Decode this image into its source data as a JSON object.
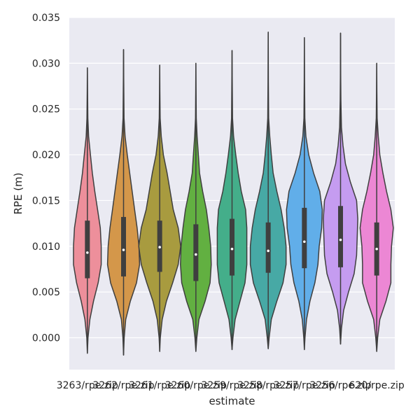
{
  "chart_data": {
    "type": "violin",
    "xlabel": "estimate",
    "ylabel": "RPE (m)",
    "ylim": [
      -0.0035,
      0.035
    ],
    "yticks": [
      0.0,
      0.005,
      0.01,
      0.015,
      0.02,
      0.025,
      0.03,
      0.035
    ],
    "ytick_labels": [
      "0.000",
      "0.005",
      "0.010",
      "0.015",
      "0.020",
      "0.025",
      "0.030",
      "0.035"
    ],
    "grid": true,
    "categories": [
      "3263/rpe.zip",
      "3262/rpe.zip",
      "3261/rpe.zip",
      "3260/rpe.zip",
      "3259/rpe.zip",
      "3258/rpe.zip",
      "3257/rpe.zip",
      "3256/rpe.zip",
      "620/rpe.zip"
    ],
    "colors": [
      "#ed8f9b",
      "#d4974a",
      "#a89b3f",
      "#62b041",
      "#44ae8a",
      "#47a9a5",
      "#61aee9",
      "#c59cf0",
      "#ec87d4"
    ],
    "series": [
      {
        "min": -0.0017,
        "q1": 0.0065,
        "median": 0.0093,
        "q3": 0.0128,
        "max": 0.0295,
        "profile": [
          [
            -0.0017,
            0.0
          ],
          [
            0.0,
            0.02
          ],
          [
            0.002,
            0.08
          ],
          [
            0.004,
            0.2
          ],
          [
            0.006,
            0.35
          ],
          [
            0.008,
            0.45
          ],
          [
            0.01,
            0.45
          ],
          [
            0.012,
            0.42
          ],
          [
            0.014,
            0.33
          ],
          [
            0.016,
            0.24
          ],
          [
            0.018,
            0.16
          ],
          [
            0.02,
            0.1
          ],
          [
            0.022,
            0.04
          ],
          [
            0.024,
            0.015
          ],
          [
            0.027,
            0.006
          ],
          [
            0.0295,
            0.0
          ]
        ]
      },
      {
        "min": -0.0019,
        "q1": 0.0067,
        "median": 0.0096,
        "q3": 0.0132,
        "max": 0.0315,
        "profile": [
          [
            -0.0019,
            0.0
          ],
          [
            0.0,
            0.02
          ],
          [
            0.002,
            0.07
          ],
          [
            0.004,
            0.22
          ],
          [
            0.006,
            0.42
          ],
          [
            0.008,
            0.52
          ],
          [
            0.01,
            0.5
          ],
          [
            0.012,
            0.44
          ],
          [
            0.014,
            0.36
          ],
          [
            0.016,
            0.28
          ],
          [
            0.018,
            0.2
          ],
          [
            0.02,
            0.12
          ],
          [
            0.022,
            0.05
          ],
          [
            0.024,
            0.015
          ],
          [
            0.028,
            0.006
          ],
          [
            0.0315,
            0.0
          ]
        ]
      },
      {
        "min": -0.0015,
        "q1": 0.0072,
        "median": 0.0099,
        "q3": 0.0128,
        "max": 0.0298,
        "profile": [
          [
            -0.0015,
            0.0
          ],
          [
            0.0,
            0.02
          ],
          [
            0.002,
            0.08
          ],
          [
            0.004,
            0.22
          ],
          [
            0.006,
            0.42
          ],
          [
            0.008,
            0.6
          ],
          [
            0.01,
            0.68
          ],
          [
            0.012,
            0.6
          ],
          [
            0.014,
            0.44
          ],
          [
            0.016,
            0.34
          ],
          [
            0.018,
            0.24
          ],
          [
            0.02,
            0.12
          ],
          [
            0.022,
            0.05
          ],
          [
            0.024,
            0.015
          ],
          [
            0.027,
            0.006
          ],
          [
            0.0298,
            0.0
          ]
        ]
      },
      {
        "min": -0.0015,
        "q1": 0.0062,
        "median": 0.0091,
        "q3": 0.0124,
        "max": 0.03,
        "profile": [
          [
            -0.0015,
            0.0
          ],
          [
            0.0,
            0.03
          ],
          [
            0.002,
            0.1
          ],
          [
            0.004,
            0.3
          ],
          [
            0.006,
            0.46
          ],
          [
            0.008,
            0.5
          ],
          [
            0.01,
            0.48
          ],
          [
            0.012,
            0.42
          ],
          [
            0.014,
            0.34
          ],
          [
            0.016,
            0.22
          ],
          [
            0.018,
            0.12
          ],
          [
            0.02,
            0.08
          ],
          [
            0.022,
            0.04
          ],
          [
            0.024,
            0.012
          ],
          [
            0.027,
            0.006
          ],
          [
            0.03,
            0.0
          ]
        ]
      },
      {
        "min": -0.0013,
        "q1": 0.0068,
        "median": 0.0097,
        "q3": 0.013,
        "max": 0.0314,
        "profile": [
          [
            -0.0013,
            0.0
          ],
          [
            0.0,
            0.03
          ],
          [
            0.002,
            0.1
          ],
          [
            0.004,
            0.26
          ],
          [
            0.006,
            0.42
          ],
          [
            0.008,
            0.48
          ],
          [
            0.01,
            0.48
          ],
          [
            0.012,
            0.48
          ],
          [
            0.014,
            0.44
          ],
          [
            0.016,
            0.3
          ],
          [
            0.018,
            0.2
          ],
          [
            0.02,
            0.12
          ],
          [
            0.022,
            0.05
          ],
          [
            0.024,
            0.015
          ],
          [
            0.028,
            0.006
          ],
          [
            0.0314,
            0.0
          ]
        ]
      },
      {
        "min": -0.0012,
        "q1": 0.0071,
        "median": 0.0095,
        "q3": 0.0126,
        "max": 0.0334,
        "profile": [
          [
            -0.0012,
            0.0
          ],
          [
            0.0,
            0.03
          ],
          [
            0.002,
            0.1
          ],
          [
            0.004,
            0.28
          ],
          [
            0.006,
            0.48
          ],
          [
            0.008,
            0.58
          ],
          [
            0.01,
            0.58
          ],
          [
            0.012,
            0.52
          ],
          [
            0.014,
            0.42
          ],
          [
            0.016,
            0.28
          ],
          [
            0.018,
            0.16
          ],
          [
            0.02,
            0.1
          ],
          [
            0.022,
            0.05
          ],
          [
            0.024,
            0.015
          ],
          [
            0.028,
            0.006
          ],
          [
            0.0334,
            0.0
          ]
        ]
      },
      {
        "min": -0.0013,
        "q1": 0.0076,
        "median": 0.0105,
        "q3": 0.0142,
        "max": 0.0328,
        "profile": [
          [
            -0.0013,
            0.0
          ],
          [
            0.0,
            0.02
          ],
          [
            0.002,
            0.07
          ],
          [
            0.004,
            0.18
          ],
          [
            0.006,
            0.34
          ],
          [
            0.008,
            0.44
          ],
          [
            0.01,
            0.48
          ],
          [
            0.012,
            0.56
          ],
          [
            0.014,
            0.58
          ],
          [
            0.016,
            0.5
          ],
          [
            0.018,
            0.3
          ],
          [
            0.02,
            0.14
          ],
          [
            0.022,
            0.05
          ],
          [
            0.024,
            0.015
          ],
          [
            0.028,
            0.006
          ],
          [
            0.0328,
            0.0
          ]
        ]
      },
      {
        "min": -0.0007,
        "q1": 0.0077,
        "median": 0.0107,
        "q3": 0.0144,
        "max": 0.0333,
        "profile": [
          [
            -0.0007,
            0.0
          ],
          [
            0.001,
            0.03
          ],
          [
            0.003,
            0.1
          ],
          [
            0.005,
            0.26
          ],
          [
            0.007,
            0.44
          ],
          [
            0.009,
            0.52
          ],
          [
            0.011,
            0.54
          ],
          [
            0.013,
            0.56
          ],
          [
            0.015,
            0.52
          ],
          [
            0.017,
            0.32
          ],
          [
            0.019,
            0.16
          ],
          [
            0.021,
            0.08
          ],
          [
            0.023,
            0.03
          ],
          [
            0.026,
            0.012
          ],
          [
            0.029,
            0.005
          ],
          [
            0.0333,
            0.0
          ]
        ]
      },
      {
        "min": -0.0015,
        "q1": 0.0068,
        "median": 0.0097,
        "q3": 0.0126,
        "max": 0.03,
        "profile": [
          [
            -0.0015,
            0.0
          ],
          [
            0.0,
            0.03
          ],
          [
            0.002,
            0.1
          ],
          [
            0.004,
            0.3
          ],
          [
            0.006,
            0.46
          ],
          [
            0.008,
            0.46
          ],
          [
            0.01,
            0.48
          ],
          [
            0.012,
            0.54
          ],
          [
            0.014,
            0.46
          ],
          [
            0.016,
            0.32
          ],
          [
            0.018,
            0.2
          ],
          [
            0.02,
            0.1
          ],
          [
            0.022,
            0.05
          ],
          [
            0.024,
            0.015
          ],
          [
            0.027,
            0.006
          ],
          [
            0.03,
            0.0
          ]
        ]
      }
    ]
  }
}
